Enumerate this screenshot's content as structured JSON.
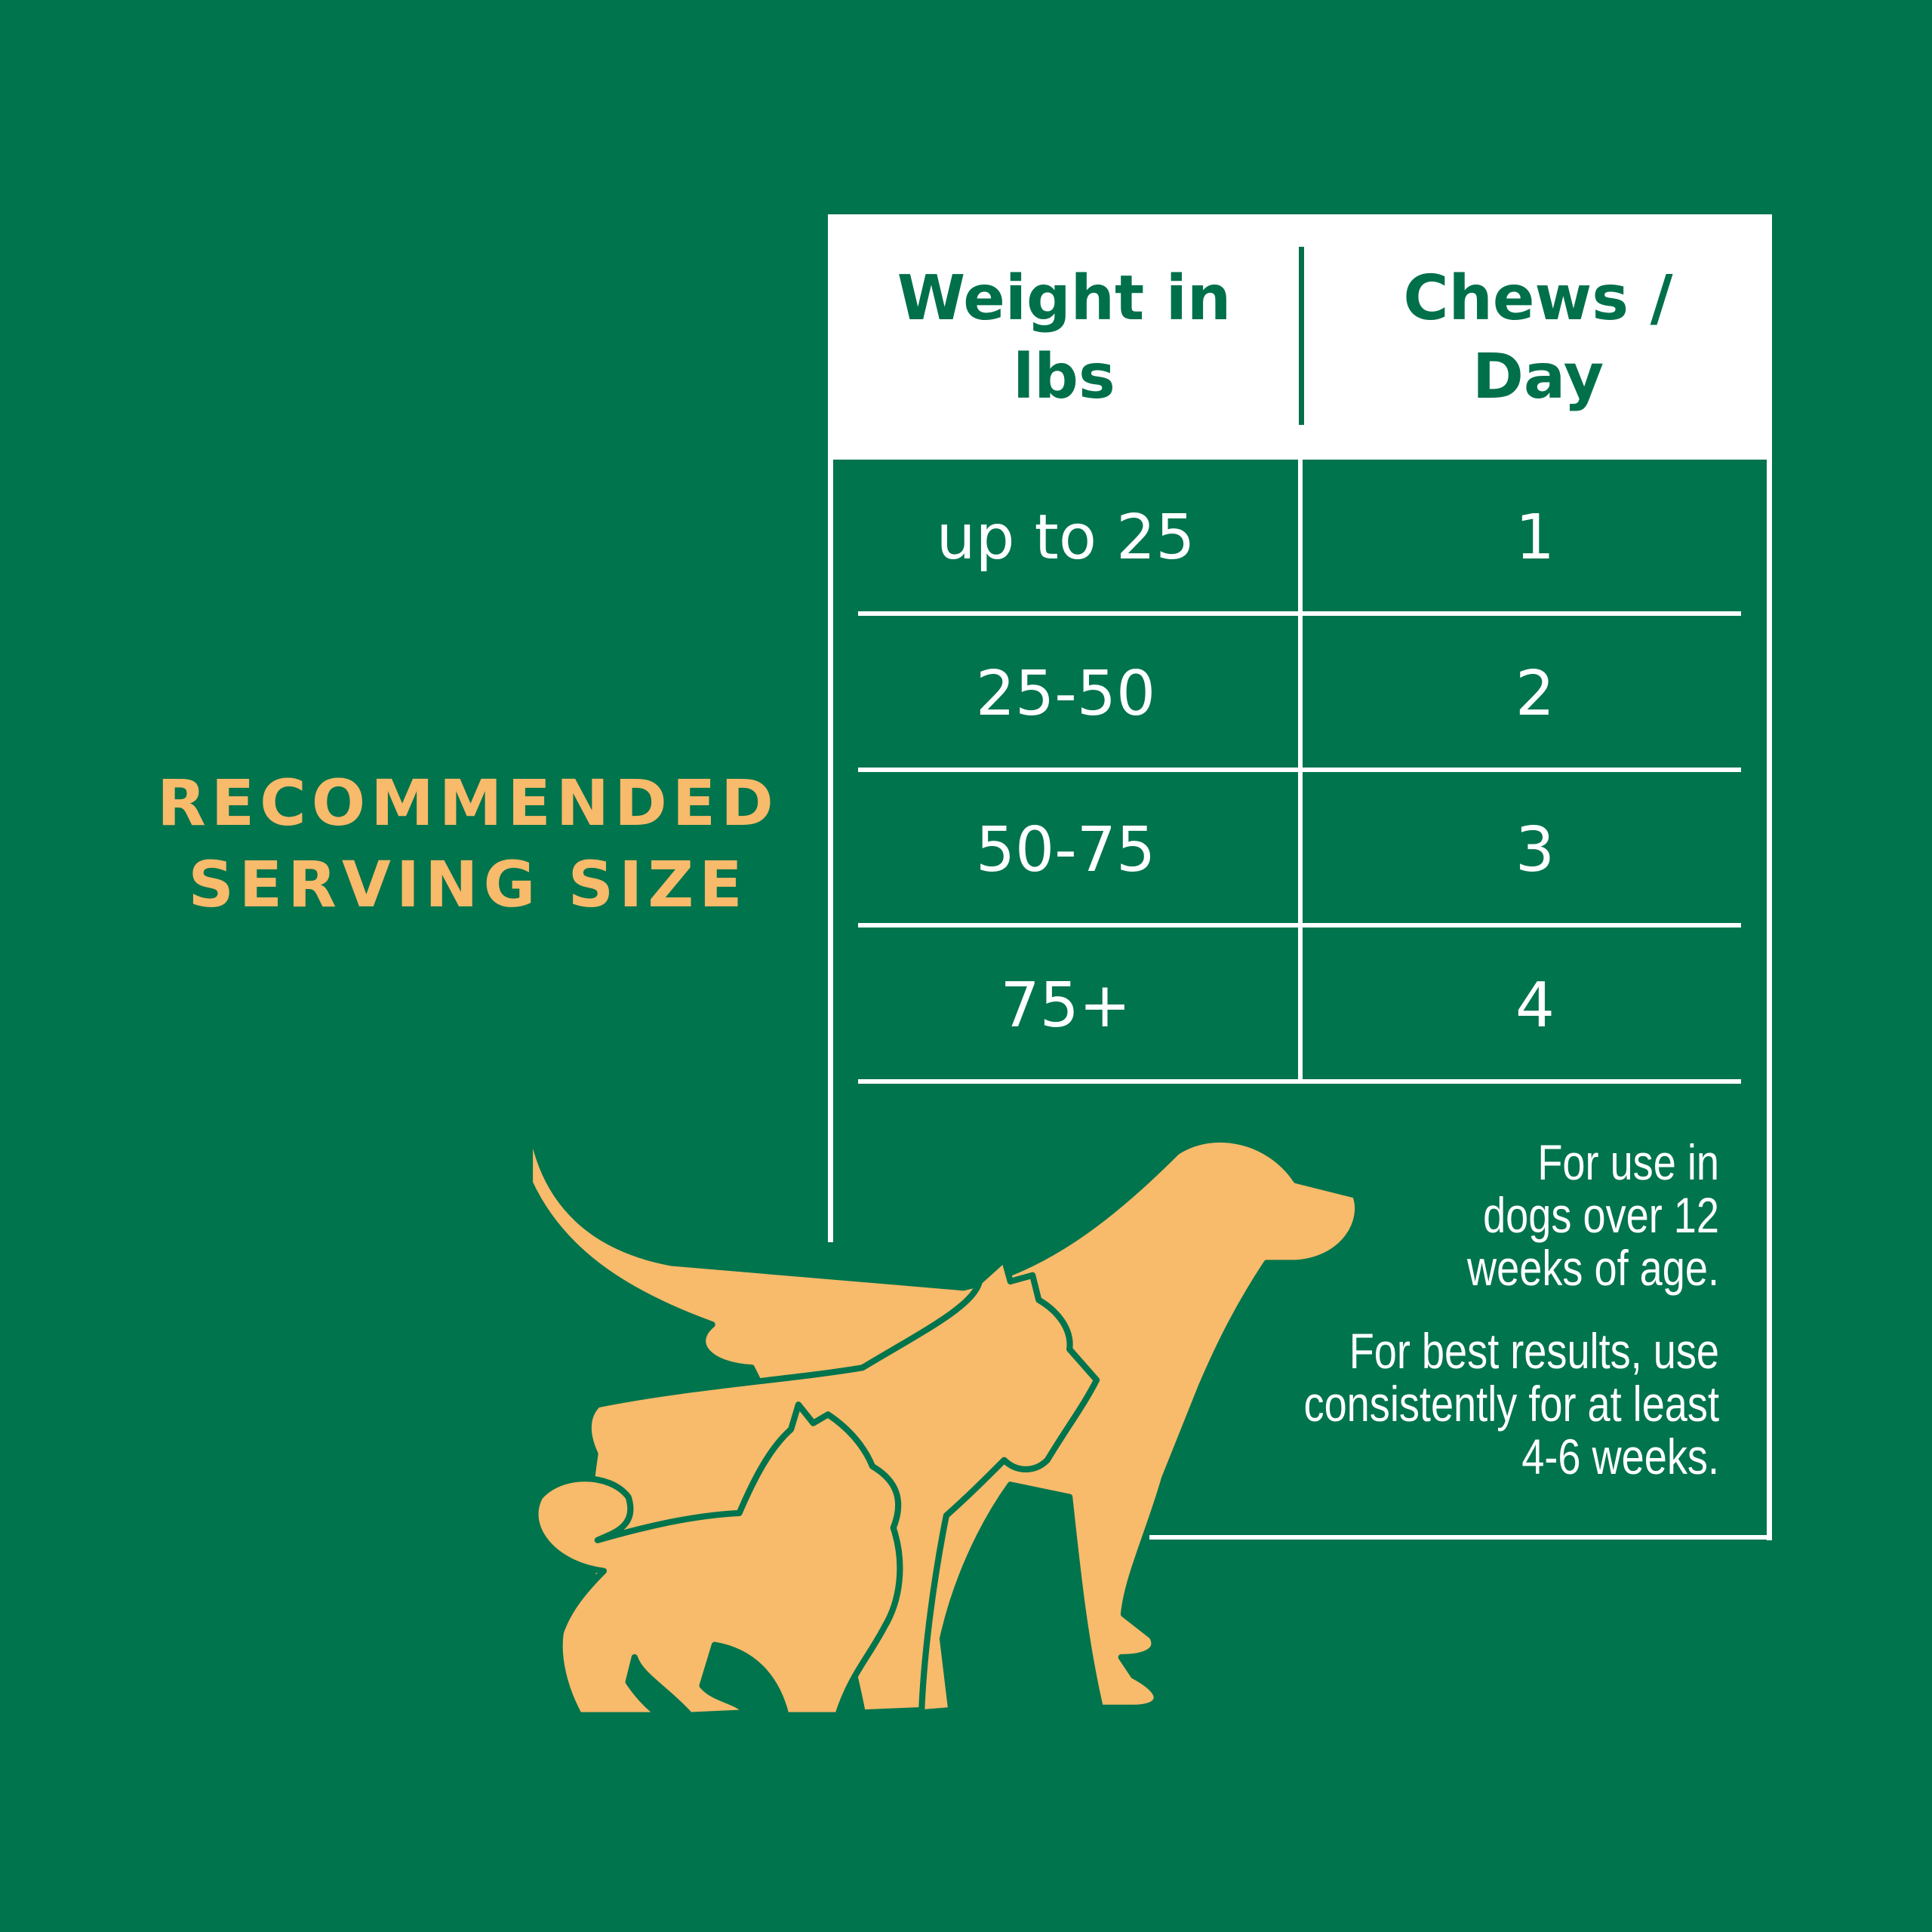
{
  "colors": {
    "background": "#00744C",
    "accent": "#F8BA6B",
    "text": "#FFFFFF"
  },
  "title": {
    "line1": "RECOMMENDED",
    "line2": "SERVING SIZE"
  },
  "table": {
    "headers": [
      {
        "line1": "Weight in",
        "line2": "lbs"
      },
      {
        "line1": "Chews /",
        "line2": "Day"
      }
    ],
    "rows": [
      {
        "weight": "up to 25",
        "chews": "1"
      },
      {
        "weight": "25-50",
        "chews": "2"
      },
      {
        "weight": "50-75",
        "chews": "3"
      },
      {
        "weight": "75+",
        "chews": "4"
      }
    ]
  },
  "notes": {
    "usage": "For use in dogs over 12 weeks of age.",
    "results": "For best results, use consistently for at least 4-6 weeks."
  },
  "illustration": {
    "icon": "dogs-silhouette-icon"
  }
}
